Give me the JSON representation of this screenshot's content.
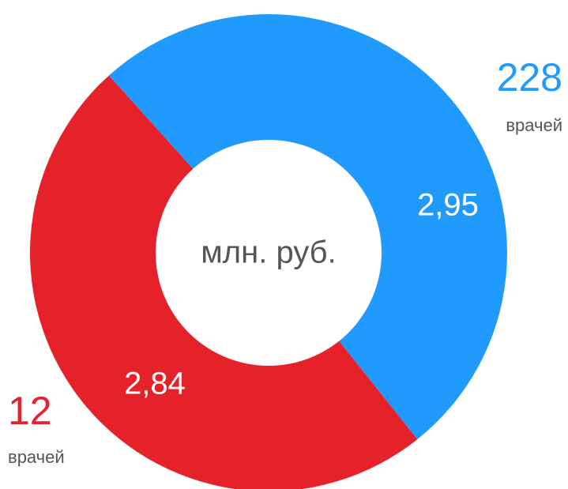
{
  "chart_data": {
    "type": "pie",
    "donut": true,
    "values": [
      2.95,
      2.84
    ],
    "value_labels": [
      "2,95",
      "2,84"
    ],
    "colors": [
      "#219afd",
      "#e5222a"
    ],
    "center_label": "млн. руб.",
    "counts": [
      228,
      12
    ],
    "count_labels": [
      "врачей",
      "врачей"
    ]
  }
}
